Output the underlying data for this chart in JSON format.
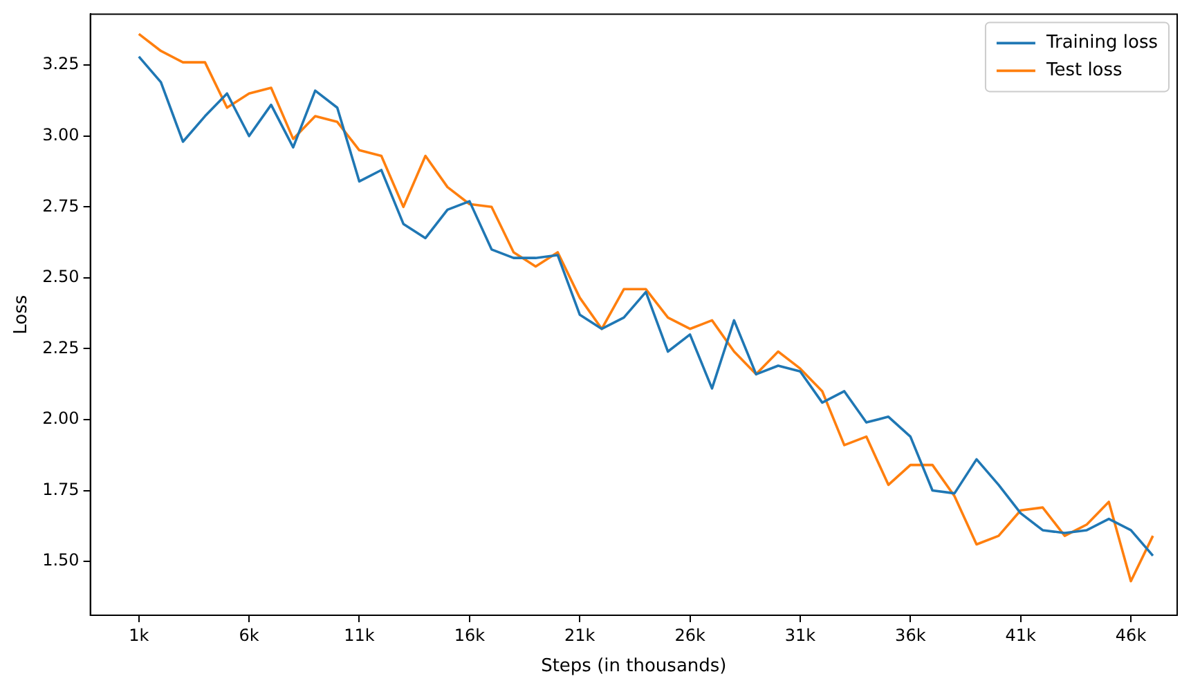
{
  "chart_data": {
    "type": "line",
    "xlabel": "Steps (in thousands)",
    "ylabel": "Loss",
    "x": [
      1,
      2,
      3,
      4,
      5,
      6,
      7,
      8,
      9,
      10,
      11,
      12,
      13,
      14,
      15,
      16,
      17,
      18,
      19,
      20,
      21,
      22,
      23,
      24,
      25,
      26,
      27,
      28,
      29,
      30,
      31,
      32,
      33,
      34,
      35,
      36,
      37,
      38,
      39,
      40,
      41,
      42,
      43,
      44,
      45,
      46,
      47
    ],
    "xlim": [
      -1.2,
      48.1
    ],
    "xticks": [
      {
        "value": 1,
        "label": "1k"
      },
      {
        "value": 6,
        "label": "6k"
      },
      {
        "value": 11,
        "label": "11k"
      },
      {
        "value": 16,
        "label": "16k"
      },
      {
        "value": 21,
        "label": "21k"
      },
      {
        "value": 26,
        "label": "26k"
      },
      {
        "value": 31,
        "label": "31k"
      },
      {
        "value": 36,
        "label": "36k"
      },
      {
        "value": 41,
        "label": "41k"
      },
      {
        "value": 46,
        "label": "46k"
      }
    ],
    "ylim": [
      1.31,
      3.43
    ],
    "yticks": [
      {
        "value": 1.5,
        "label": "1.50"
      },
      {
        "value": 1.75,
        "label": "1.75"
      },
      {
        "value": 2,
        "label": "2.00"
      },
      {
        "value": 2.25,
        "label": "2.25"
      },
      {
        "value": 2.5,
        "label": "2.50"
      },
      {
        "value": 2.75,
        "label": "2.75"
      },
      {
        "value": 3,
        "label": "3.00"
      },
      {
        "value": 3.25,
        "label": "3.25"
      }
    ],
    "grid": false,
    "legend": "top right",
    "marker": "none",
    "line_style": "solid",
    "series": [
      {
        "name": "Training loss",
        "color": "#1f77b4",
        "values": [
          3.28,
          3.19,
          2.98,
          3.07,
          3.15,
          3.0,
          3.11,
          2.96,
          3.16,
          3.1,
          2.84,
          2.88,
          2.69,
          2.64,
          2.74,
          2.77,
          2.6,
          2.57,
          2.57,
          2.58,
          2.37,
          2.32,
          2.36,
          2.45,
          2.24,
          2.3,
          2.11,
          2.35,
          2.16,
          2.19,
          2.17,
          2.06,
          2.1,
          1.99,
          2.01,
          1.94,
          1.75,
          1.74,
          1.86,
          1.77,
          1.67,
          1.61,
          1.6,
          1.61,
          1.65,
          1.61,
          1.52
        ]
      },
      {
        "name": "Test loss",
        "color": "#ff7f0e",
        "values": [
          3.36,
          3.3,
          3.26,
          3.26,
          3.1,
          3.15,
          3.17,
          2.99,
          3.07,
          3.05,
          2.95,
          2.93,
          2.75,
          2.93,
          2.82,
          2.76,
          2.75,
          2.59,
          2.54,
          2.59,
          2.43,
          2.32,
          2.46,
          2.46,
          2.36,
          2.32,
          2.35,
          2.24,
          2.16,
          2.24,
          2.18,
          2.1,
          1.91,
          1.94,
          1.77,
          1.84,
          1.84,
          1.73,
          1.56,
          1.59,
          1.68,
          1.69,
          1.59,
          1.63,
          1.71,
          1.43,
          1.59
        ]
      }
    ]
  }
}
